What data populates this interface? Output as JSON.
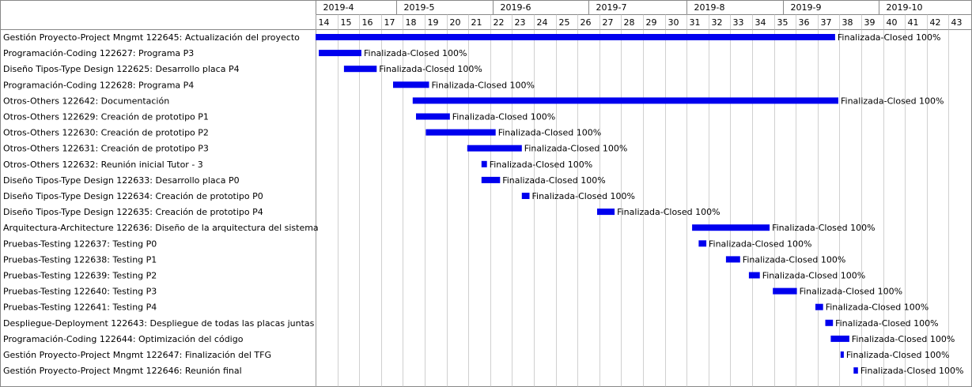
{
  "chart_data": {
    "type": "gantt",
    "months": [
      "2019-4",
      "2019-5",
      "2019-6",
      "2019-7",
      "2019-8",
      "2019-9",
      "2019-10"
    ],
    "weeks": [
      14,
      15,
      16,
      17,
      18,
      19,
      20,
      21,
      22,
      23,
      24,
      25,
      26,
      27,
      28,
      29,
      30,
      31,
      32,
      33,
      34,
      35,
      36,
      37,
      38,
      39,
      40,
      41,
      42,
      43
    ],
    "tasks": [
      {
        "label": "Gestión Proyecto-Project Mngmt 122645: Actualización del proyecto",
        "start": 14.0,
        "end": 37.8,
        "status": "Finalizada-Closed 100%"
      },
      {
        "label": "Programación-Coding 122627: Programa P3",
        "start": 14.15,
        "end": 16.1,
        "status": "Finalizada-Closed 100%"
      },
      {
        "label": "Diseño Tipos-Type Design 122625: Desarrollo placa P4",
        "start": 15.3,
        "end": 16.8,
        "status": "Finalizada-Closed 100%"
      },
      {
        "label": "Programación-Coding 122628: Programa P4",
        "start": 17.55,
        "end": 19.2,
        "status": "Finalizada-Closed 100%"
      },
      {
        "label": "Otros-Others 122642: Documentación",
        "start": 18.45,
        "end": 37.95,
        "status": "Finalizada-Closed 100%"
      },
      {
        "label": "Otros-Others 122629: Creación de prototipo P1",
        "start": 18.6,
        "end": 20.15,
        "status": "Finalizada-Closed 100%"
      },
      {
        "label": "Otros-Others 122630: Creación de prototipo P2",
        "start": 19.05,
        "end": 22.25,
        "status": "Finalizada-Closed 100%"
      },
      {
        "label": "Otros-Others 122631: Creación de prototipo P3",
        "start": 20.95,
        "end": 23.45,
        "status": "Finalizada-Closed 100%"
      },
      {
        "label": "Otros-Others 122632: Reunión inicial Tutor - 3",
        "start": 21.6,
        "end": 21.85,
        "status": "Finalizada-Closed 100%"
      },
      {
        "label": "Diseño Tipos-Type Design 122633: Desarrollo placa P0",
        "start": 21.6,
        "end": 22.45,
        "status": "Finalizada-Closed 100%"
      },
      {
        "label": "Diseño Tipos-Type Design 122634: Creación de prototipo P0",
        "start": 23.45,
        "end": 23.8,
        "status": "Finalizada-Closed 100%"
      },
      {
        "label": "Diseño Tipos-Type Design 122635: Creación de prototipo P4",
        "start": 26.9,
        "end": 27.7,
        "status": "Finalizada-Closed 100%"
      },
      {
        "label": "Arquitectura-Architecture 122636: Diseño de la arquitectura del sistema",
        "start": 31.25,
        "end": 34.8,
        "status": "Finalizada-Closed 100%"
      },
      {
        "label": "Pruebas-Testing 122637: Testing P0",
        "start": 31.55,
        "end": 31.9,
        "status": "Finalizada-Closed 100%"
      },
      {
        "label": "Pruebas-Testing 122638: Testing P1",
        "start": 32.8,
        "end": 33.45,
        "status": "Finalizada-Closed 100%"
      },
      {
        "label": "Pruebas-Testing 122639: Testing P2",
        "start": 33.85,
        "end": 34.35,
        "status": "Finalizada-Closed 100%"
      },
      {
        "label": "Pruebas-Testing 122640: Testing P3",
        "start": 34.95,
        "end": 36.05,
        "status": "Finalizada-Closed 100%"
      },
      {
        "label": "Pruebas-Testing 122641: Testing P4",
        "start": 36.9,
        "end": 37.25,
        "status": "Finalizada-Closed 100%"
      },
      {
        "label": "Despliegue-Deployment 122643: Despliegue de todas las placas juntas",
        "start": 37.35,
        "end": 37.7,
        "status": "Finalizada-Closed 100%"
      },
      {
        "label": "Programación-Coding 122644: Optimización del código",
        "start": 37.6,
        "end": 38.45,
        "status": "Finalizada-Closed 100%"
      },
      {
        "label": "Gestión Proyecto-Project Mngmt 122647: Finalización del TFG",
        "start": 38.05,
        "end": 38.2,
        "status": "Finalizada-Closed 100%"
      },
      {
        "label": "Gestión Proyecto-Project Mngmt 122646: Reunión final",
        "start": 38.65,
        "end": 38.85,
        "status": "Finalizada-Closed 100%"
      }
    ],
    "colors": {
      "bar": "#0000ee",
      "grid": "#b0b0b0",
      "border": "#888888",
      "text": "#000000"
    }
  }
}
